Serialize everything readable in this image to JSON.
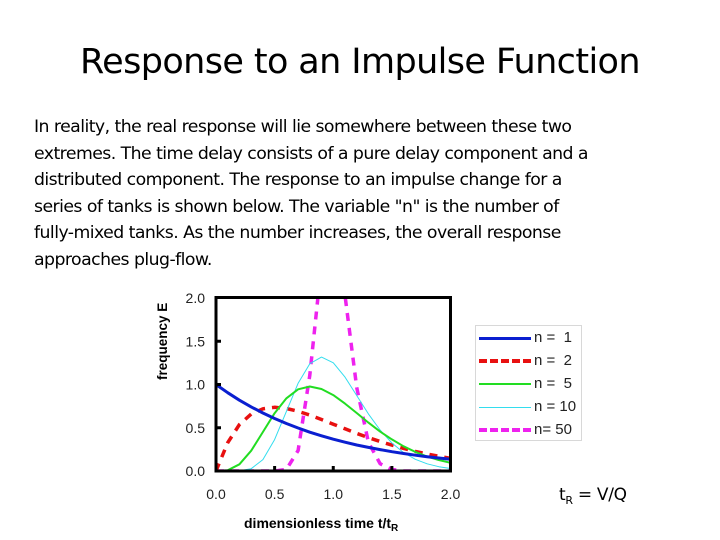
{
  "slide": {
    "title": "Response to an Impulse Function",
    "body": "In reality, the real response will lie somewhere between these two\nextremes. The time delay consists of a pure delay component and a\ndistributed component.  The response to an impulse change for a\nseries of tanks is shown below. The variable \"n\" is the number of\nfully-mixed tanks. As the number increases, the overall response\napproaches plug-flow.",
    "formula": {
      "lhs": "t",
      "lhs_sub": "R",
      "rhs": " = V/Q"
    }
  },
  "chart_data": {
    "type": "line",
    "title": "",
    "xlabel": "dimensionless time t/t",
    "xlabel_sub": "R",
    "ylabel": "frequency E",
    "xlim": [
      0.0,
      2.0
    ],
    "ylim": [
      0.0,
      2.0
    ],
    "xticks": [
      "0.0",
      "0.5",
      "1.0",
      "1.5",
      "2.0"
    ],
    "yticks": [
      "0.0",
      "0.5",
      "1.0",
      "1.5",
      "2.0"
    ],
    "grid": false,
    "legend_position": "right",
    "x": [
      0.0,
      0.1,
      0.2,
      0.3,
      0.4,
      0.5,
      0.6,
      0.7,
      0.8,
      0.9,
      1.0,
      1.1,
      1.2,
      1.3,
      1.4,
      1.5,
      1.6,
      1.7,
      1.8,
      1.9,
      2.0
    ],
    "series": [
      {
        "name": "n =  1",
        "color": "#0a1fd0",
        "style": "solid",
        "width": 3,
        "values": [
          1.0,
          0.905,
          0.819,
          0.741,
          0.67,
          0.607,
          0.549,
          0.497,
          0.449,
          0.407,
          0.368,
          0.333,
          0.301,
          0.273,
          0.247,
          0.223,
          0.202,
          0.183,
          0.165,
          0.15,
          0.135
        ]
      },
      {
        "name": "n =  2",
        "color": "#e81010",
        "style": "dashed",
        "width": 3.5,
        "values": [
          0.0,
          0.327,
          0.536,
          0.659,
          0.719,
          0.736,
          0.723,
          0.69,
          0.646,
          0.595,
          0.541,
          0.488,
          0.435,
          0.386,
          0.341,
          0.299,
          0.261,
          0.227,
          0.197,
          0.171,
          0.147
        ]
      },
      {
        "name": "n =  5",
        "color": "#22dd22",
        "style": "solid",
        "width": 2,
        "values": [
          0.0,
          0.008,
          0.077,
          0.235,
          0.451,
          0.668,
          0.84,
          0.944,
          0.977,
          0.948,
          0.877,
          0.779,
          0.67,
          0.559,
          0.456,
          0.365,
          0.286,
          0.221,
          0.168,
          0.127,
          0.095
        ]
      },
      {
        "name": "n = 10",
        "color": "#33ddee",
        "style": "solid",
        "width": 1,
        "values": [
          0.0,
          0.0,
          0.002,
          0.027,
          0.132,
          0.363,
          0.689,
          1.014,
          1.241,
          1.317,
          1.251,
          1.086,
          0.873,
          0.66,
          0.474,
          0.324,
          0.213,
          0.135,
          0.083,
          0.05,
          0.029
        ]
      },
      {
        "name": "n= 50",
        "color": "#ee22ee",
        "style": "dashed",
        "width": 3.5,
        "values": [
          0.0,
          0.0,
          0.0,
          0.0,
          0.0,
          0.0,
          0.018,
          0.236,
          1.107,
          2.4,
          2.81,
          2.03,
          0.967,
          0.332,
          0.084,
          0.017,
          0.0,
          0.0,
          0.0,
          0.0,
          0.0
        ]
      }
    ]
  }
}
